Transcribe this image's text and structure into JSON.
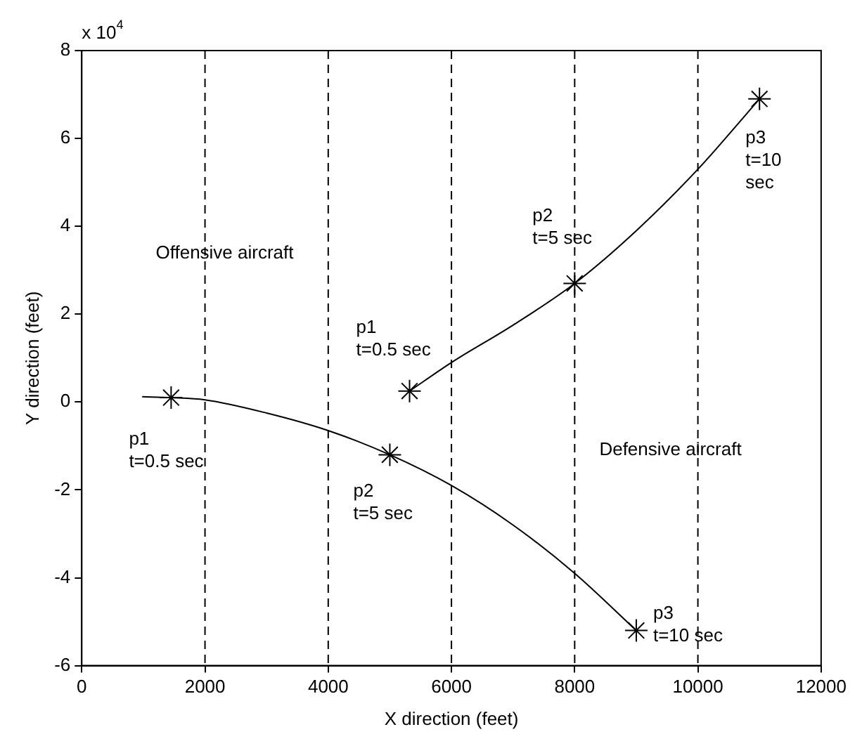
{
  "chart_data": {
    "type": "line",
    "xlabel": "X direction (feet)",
    "ylabel": "Y direction (feet)",
    "xlim": [
      0,
      12000
    ],
    "xticks": [
      0,
      2000,
      4000,
      6000,
      8000,
      10000,
      12000
    ],
    "ylim": [
      -6,
      8
    ],
    "yticks": [
      -6,
      -4,
      -2,
      0,
      2,
      4,
      6,
      8
    ],
    "series": [
      {
        "type": "line",
        "color": "#000000",
        "marker": "none",
        "x": [
          980,
          1450,
          2000,
          3000,
          4000,
          5000,
          6000,
          7000,
          8000,
          9000
        ],
        "values": [
          0.12,
          0.1,
          0.05,
          -0.25,
          -0.65,
          -1.2,
          -1.9,
          -2.8,
          -3.9,
          -5.2
        ]
      },
      {
        "type": "line",
        "color": "#000000",
        "marker": "none",
        "x": [
          5320,
          6000,
          7000,
          8000,
          9000,
          10000,
          11000
        ],
        "values": [
          0.25,
          0.9,
          1.75,
          2.7,
          3.9,
          5.3,
          6.9
        ]
      },
      {
        "type": "scatter",
        "color": "#000000",
        "marker": "cross",
        "x": [
          1450,
          5000,
          9000
        ],
        "values": [
          0.1,
          -1.2,
          -5.2
        ]
      },
      {
        "type": "scatter",
        "color": "#000000",
        "marker": "cross",
        "x": [
          5320,
          8000,
          11000
        ],
        "values": [
          0.25,
          2.7,
          6.9
        ]
      }
    ],
    "ref_lines": [
      {
        "axis": "x",
        "value": 2000,
        "color": "#000000",
        "line_style": "dashed"
      },
      {
        "axis": "x",
        "value": 4000,
        "color": "#000000",
        "line_style": "dashed"
      },
      {
        "axis": "x",
        "value": 6000,
        "color": "#000000",
        "line_style": "dashed"
      },
      {
        "axis": "x",
        "value": 8000,
        "color": "#000000",
        "line_style": "dashed"
      },
      {
        "axis": "x",
        "value": 10000,
        "color": "#000000",
        "line_style": "dashed"
      }
    ],
    "annotations": [
      "x 10$^{4}$",
      "Offensive aircraft",
      "Defensive aircraft",
      {
        "text": "p1\nt=0.5 sec",
        "x": 1450,
        "y": 0.1
      },
      {
        "text": "p2\nt=5 sec",
        "x": 5000,
        "y": -1.2
      },
      {
        "text": "p3\nt=10 sec",
        "x": 9000,
        "y": -5.2
      },
      {
        "text": "p1\nt=0.5 sec",
        "x": 5320,
        "y": 0.25
      },
      {
        "text": "p2\nt=5 sec",
        "x": 8000,
        "y": 2.7
      },
      {
        "text": "p3\nt=10\nsec",
        "x": 11000,
        "y": 6.9
      }
    ],
    "grid": false,
    "legend": false
  }
}
